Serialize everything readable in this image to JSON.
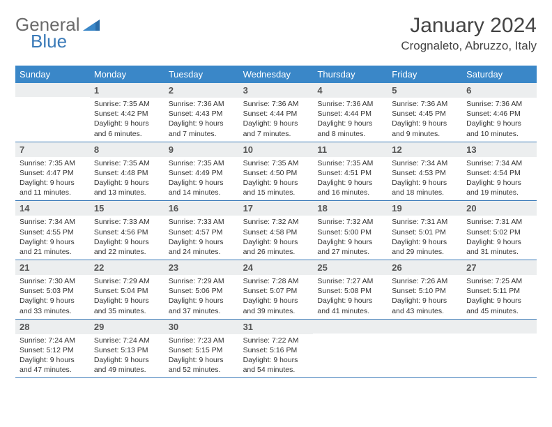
{
  "logo": {
    "text1": "General",
    "text2": "Blue"
  },
  "title": "January 2024",
  "location": "Crognaleto, Abruzzo, Italy",
  "colors": {
    "header_bg": "#3a87c8",
    "daynum_bg": "#eceeef",
    "border": "#3a7ab8",
    "text": "#333333"
  },
  "weekdays": [
    "Sunday",
    "Monday",
    "Tuesday",
    "Wednesday",
    "Thursday",
    "Friday",
    "Saturday"
  ],
  "weeks": [
    [
      {
        "n": "",
        "sr": "",
        "ss": "",
        "dl": ""
      },
      {
        "n": "1",
        "sr": "Sunrise: 7:35 AM",
        "ss": "Sunset: 4:42 PM",
        "dl": "Daylight: 9 hours and 6 minutes."
      },
      {
        "n": "2",
        "sr": "Sunrise: 7:36 AM",
        "ss": "Sunset: 4:43 PM",
        "dl": "Daylight: 9 hours and 7 minutes."
      },
      {
        "n": "3",
        "sr": "Sunrise: 7:36 AM",
        "ss": "Sunset: 4:44 PM",
        "dl": "Daylight: 9 hours and 7 minutes."
      },
      {
        "n": "4",
        "sr": "Sunrise: 7:36 AM",
        "ss": "Sunset: 4:44 PM",
        "dl": "Daylight: 9 hours and 8 minutes."
      },
      {
        "n": "5",
        "sr": "Sunrise: 7:36 AM",
        "ss": "Sunset: 4:45 PM",
        "dl": "Daylight: 9 hours and 9 minutes."
      },
      {
        "n": "6",
        "sr": "Sunrise: 7:36 AM",
        "ss": "Sunset: 4:46 PM",
        "dl": "Daylight: 9 hours and 10 minutes."
      }
    ],
    [
      {
        "n": "7",
        "sr": "Sunrise: 7:35 AM",
        "ss": "Sunset: 4:47 PM",
        "dl": "Daylight: 9 hours and 11 minutes."
      },
      {
        "n": "8",
        "sr": "Sunrise: 7:35 AM",
        "ss": "Sunset: 4:48 PM",
        "dl": "Daylight: 9 hours and 13 minutes."
      },
      {
        "n": "9",
        "sr": "Sunrise: 7:35 AM",
        "ss": "Sunset: 4:49 PM",
        "dl": "Daylight: 9 hours and 14 minutes."
      },
      {
        "n": "10",
        "sr": "Sunrise: 7:35 AM",
        "ss": "Sunset: 4:50 PM",
        "dl": "Daylight: 9 hours and 15 minutes."
      },
      {
        "n": "11",
        "sr": "Sunrise: 7:35 AM",
        "ss": "Sunset: 4:51 PM",
        "dl": "Daylight: 9 hours and 16 minutes."
      },
      {
        "n": "12",
        "sr": "Sunrise: 7:34 AM",
        "ss": "Sunset: 4:53 PM",
        "dl": "Daylight: 9 hours and 18 minutes."
      },
      {
        "n": "13",
        "sr": "Sunrise: 7:34 AM",
        "ss": "Sunset: 4:54 PM",
        "dl": "Daylight: 9 hours and 19 minutes."
      }
    ],
    [
      {
        "n": "14",
        "sr": "Sunrise: 7:34 AM",
        "ss": "Sunset: 4:55 PM",
        "dl": "Daylight: 9 hours and 21 minutes."
      },
      {
        "n": "15",
        "sr": "Sunrise: 7:33 AM",
        "ss": "Sunset: 4:56 PM",
        "dl": "Daylight: 9 hours and 22 minutes."
      },
      {
        "n": "16",
        "sr": "Sunrise: 7:33 AM",
        "ss": "Sunset: 4:57 PM",
        "dl": "Daylight: 9 hours and 24 minutes."
      },
      {
        "n": "17",
        "sr": "Sunrise: 7:32 AM",
        "ss": "Sunset: 4:58 PM",
        "dl": "Daylight: 9 hours and 26 minutes."
      },
      {
        "n": "18",
        "sr": "Sunrise: 7:32 AM",
        "ss": "Sunset: 5:00 PM",
        "dl": "Daylight: 9 hours and 27 minutes."
      },
      {
        "n": "19",
        "sr": "Sunrise: 7:31 AM",
        "ss": "Sunset: 5:01 PM",
        "dl": "Daylight: 9 hours and 29 minutes."
      },
      {
        "n": "20",
        "sr": "Sunrise: 7:31 AM",
        "ss": "Sunset: 5:02 PM",
        "dl": "Daylight: 9 hours and 31 minutes."
      }
    ],
    [
      {
        "n": "21",
        "sr": "Sunrise: 7:30 AM",
        "ss": "Sunset: 5:03 PM",
        "dl": "Daylight: 9 hours and 33 minutes."
      },
      {
        "n": "22",
        "sr": "Sunrise: 7:29 AM",
        "ss": "Sunset: 5:04 PM",
        "dl": "Daylight: 9 hours and 35 minutes."
      },
      {
        "n": "23",
        "sr": "Sunrise: 7:29 AM",
        "ss": "Sunset: 5:06 PM",
        "dl": "Daylight: 9 hours and 37 minutes."
      },
      {
        "n": "24",
        "sr": "Sunrise: 7:28 AM",
        "ss": "Sunset: 5:07 PM",
        "dl": "Daylight: 9 hours and 39 minutes."
      },
      {
        "n": "25",
        "sr": "Sunrise: 7:27 AM",
        "ss": "Sunset: 5:08 PM",
        "dl": "Daylight: 9 hours and 41 minutes."
      },
      {
        "n": "26",
        "sr": "Sunrise: 7:26 AM",
        "ss": "Sunset: 5:10 PM",
        "dl": "Daylight: 9 hours and 43 minutes."
      },
      {
        "n": "27",
        "sr": "Sunrise: 7:25 AM",
        "ss": "Sunset: 5:11 PM",
        "dl": "Daylight: 9 hours and 45 minutes."
      }
    ],
    [
      {
        "n": "28",
        "sr": "Sunrise: 7:24 AM",
        "ss": "Sunset: 5:12 PM",
        "dl": "Daylight: 9 hours and 47 minutes."
      },
      {
        "n": "29",
        "sr": "Sunrise: 7:24 AM",
        "ss": "Sunset: 5:13 PM",
        "dl": "Daylight: 9 hours and 49 minutes."
      },
      {
        "n": "30",
        "sr": "Sunrise: 7:23 AM",
        "ss": "Sunset: 5:15 PM",
        "dl": "Daylight: 9 hours and 52 minutes."
      },
      {
        "n": "31",
        "sr": "Sunrise: 7:22 AM",
        "ss": "Sunset: 5:16 PM",
        "dl": "Daylight: 9 hours and 54 minutes."
      },
      {
        "n": "",
        "sr": "",
        "ss": "",
        "dl": ""
      },
      {
        "n": "",
        "sr": "",
        "ss": "",
        "dl": ""
      },
      {
        "n": "",
        "sr": "",
        "ss": "",
        "dl": ""
      }
    ]
  ]
}
